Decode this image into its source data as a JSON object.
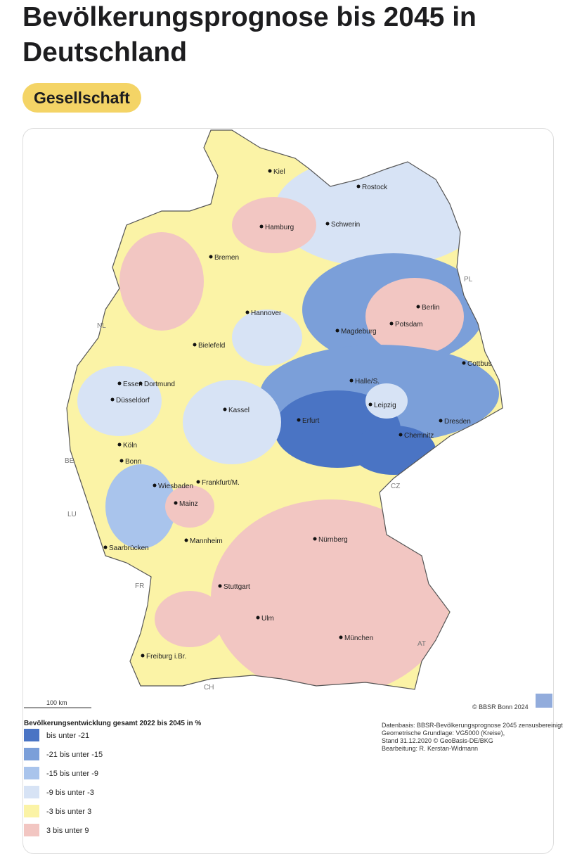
{
  "header": {
    "title_line1": "Bevölkerungsprognose bis 2045 in",
    "title_line2": "Deutschland",
    "tag": "Gesellschaft"
  },
  "map": {
    "cities": [
      "Kiel",
      "Rostock",
      "Hamburg",
      "Schwerin",
      "Bremen",
      "Berlin",
      "Potsdam",
      "Hannover",
      "Magdeburg",
      "Bielefeld",
      "Cottbus",
      "Essen",
      "Dortmund",
      "Halle/S.",
      "Düsseldorf",
      "Kassel",
      "Leipzig",
      "Dresden",
      "Köln",
      "Erfurt",
      "Bonn",
      "Chemnitz",
      "Wiesbaden",
      "Frankfurt/M.",
      "Mainz",
      "Nürnberg",
      "Mannheim",
      "Saarbrücken",
      "Stuttgart",
      "Ulm",
      "München",
      "Freiburg i.Br."
    ],
    "countries": [
      "PL",
      "NL",
      "BE",
      "LU",
      "CZ",
      "FR",
      "AT",
      "CH"
    ],
    "scale": "100 km",
    "copyright": "© BBSR Bonn 2024"
  },
  "legend": {
    "title": "Bevölkerungsentwicklung gesamt 2022 bis 2045 in %",
    "items": [
      {
        "label": "bis unter -21",
        "color": "#4a74c4"
      },
      {
        "label": "-21 bis unter -15",
        "color": "#7b9fd9"
      },
      {
        "label": "-15 bis unter -9",
        "color": "#a9c4ec"
      },
      {
        "label": "-9 bis unter -3",
        "color": "#d7e3f5"
      },
      {
        "label": "-3 bis unter 3",
        "color": "#fbf3a6"
      },
      {
        "label": "3 bis unter 9",
        "color": "#f2c6c2"
      }
    ]
  },
  "credits": [
    "Datenbasis: BBSR-Bevölkerungsprognose 2045 zensusbereinigt",
    "Geometrische Grundlage: VG5000 (Kreise),",
    "Stand 31.12.2020 © GeoBasis-DE/BKG",
    "Bearbeitung: R. Kerstan-Widmann"
  ]
}
